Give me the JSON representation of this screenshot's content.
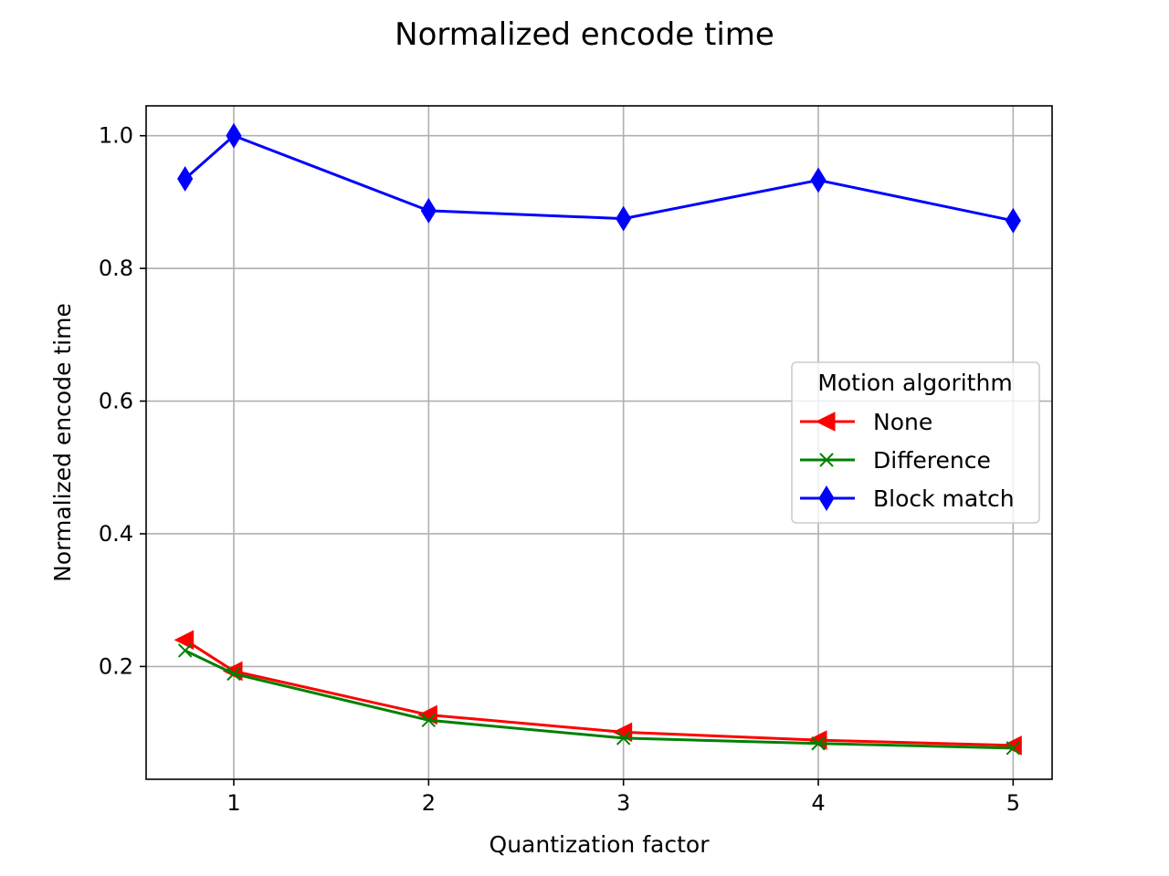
{
  "chart_data": {
    "type": "line",
    "title": "Normalized encode time",
    "xlabel": "Quantization factor",
    "ylabel": "Normalized encode time",
    "xlim": [
      0.55,
      5.2
    ],
    "ylim": [
      0.03,
      1.045
    ],
    "xticks": [
      1,
      2,
      3,
      4,
      5
    ],
    "yticks": [
      0.2,
      0.4,
      0.6,
      0.8,
      1.0
    ],
    "xtick_labels": [
      "1",
      "2",
      "3",
      "4",
      "5"
    ],
    "ytick_labels": [
      "0.2",
      "0.4",
      "0.6",
      "0.8",
      "1.0"
    ],
    "grid": true,
    "legend": {
      "title": "Motion algorithm",
      "placement": "center-right"
    },
    "x": [
      0.75,
      1,
      2,
      3,
      4,
      5
    ],
    "series": [
      {
        "name": "None",
        "color": "#ff0000",
        "marker": "triangle-left",
        "values": [
          0.24,
          0.193,
          0.127,
          0.101,
          0.089,
          0.081
        ]
      },
      {
        "name": "Difference",
        "color": "#008000",
        "marker": "x",
        "values": [
          0.224,
          0.189,
          0.119,
          0.092,
          0.084,
          0.077
        ]
      },
      {
        "name": "Block match",
        "color": "#0000ff",
        "marker": "thin-diamond",
        "values": [
          0.935,
          1.0,
          0.887,
          0.875,
          0.933,
          0.872
        ]
      }
    ]
  }
}
